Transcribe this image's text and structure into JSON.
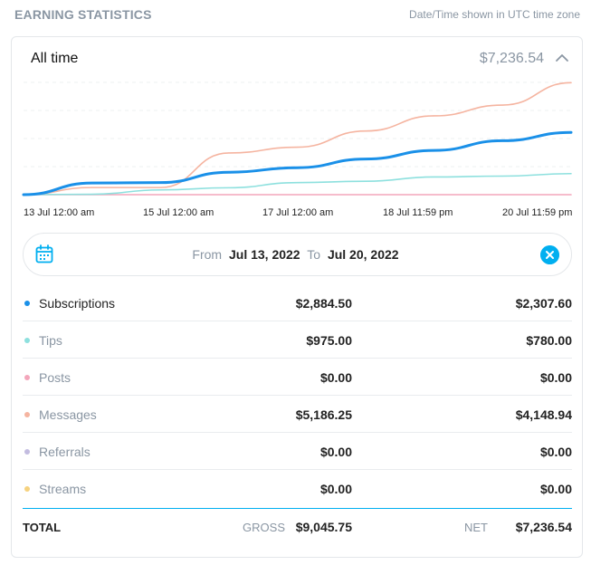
{
  "header": {
    "title": "EARNING STATISTICS",
    "note": "Date/Time shown in UTC time zone"
  },
  "summary": {
    "period": "All time",
    "total": "$7,236.54"
  },
  "chart_data": {
    "type": "line",
    "x_tick_labels": [
      "13 Jul 12:00 am",
      "15 Jul 12:00 am",
      "17 Jul 12:00 am",
      "18 Jul 11:59 pm",
      "20 Jul 11:59 pm"
    ],
    "x": [
      0,
      1,
      2,
      3,
      4,
      5,
      6,
      7,
      8
    ],
    "ylim": [
      0,
      5200
    ],
    "series": [
      {
        "name": "Messages",
        "color": "#f5b4a0",
        "values": [
          0,
          330,
          330,
          1930,
          2200,
          2950,
          3650,
          4150,
          5186
        ]
      },
      {
        "name": "Subscriptions",
        "color": "#1a90e8",
        "values": [
          0,
          540,
          560,
          1040,
          1250,
          1650,
          2050,
          2500,
          2884
        ]
      },
      {
        "name": "Tips",
        "color": "#8de0de",
        "values": [
          0,
          20,
          220,
          320,
          560,
          620,
          820,
          860,
          975
        ]
      },
      {
        "name": "Posts",
        "color": "#f3a6bb",
        "values": [
          0,
          0,
          0,
          0,
          0,
          0,
          0,
          0,
          0
        ]
      }
    ]
  },
  "date_range": {
    "from_label": "From",
    "from": "Jul 13, 2022",
    "to_label": "To",
    "to": "Jul 20, 2022"
  },
  "rows": [
    {
      "name": "Subscriptions",
      "gross": "$2,884.50",
      "net": "$2,307.60",
      "color": "#1a90e8"
    },
    {
      "name": "Tips",
      "gross": "$975.00",
      "net": "$780.00",
      "color": "#8de0de"
    },
    {
      "name": "Posts",
      "gross": "$0.00",
      "net": "$0.00",
      "color": "#f3a6bb"
    },
    {
      "name": "Messages",
      "gross": "$5,186.25",
      "net": "$4,148.94",
      "color": "#f5b4a0"
    },
    {
      "name": "Referrals",
      "gross": "$0.00",
      "net": "$0.00",
      "color": "#c3bce0"
    },
    {
      "name": "Streams",
      "gross": "$0.00",
      "net": "$0.00",
      "color": "#f6d27f"
    }
  ],
  "totals": {
    "label": "TOTAL",
    "gross_label": "GROSS",
    "gross": "$9,045.75",
    "net_label": "NET",
    "net": "$7,236.54"
  }
}
